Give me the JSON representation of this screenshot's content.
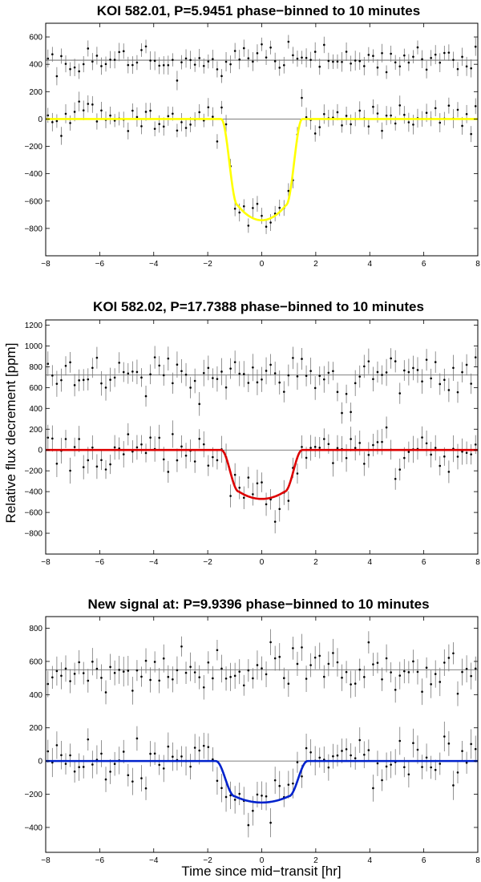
{
  "figure": {
    "ylabel": "Relative flux decrement [ppm]",
    "xlabel": "Time since mid−transit [hr]"
  },
  "chart_data": [
    {
      "type": "scatter",
      "title": "KOI 582.01, P=5.9451 phase−binned to 10 minutes",
      "xlim": [
        -8,
        8
      ],
      "ylim": [
        -1000,
        700
      ],
      "xticks": [
        -8,
        -6,
        -4,
        -2,
        0,
        2,
        4,
        6,
        8
      ],
      "yticks": [
        -800,
        -600,
        -400,
        -200,
        0,
        200,
        400,
        600
      ],
      "grid": false,
      "offset_baseline": 430,
      "depth": 740,
      "ingress_start": 1.5,
      "flat_half_width": 0.9,
      "model_color": "#ffff00",
      "noise_ppm": 55,
      "error_bar_ppm": 60
    },
    {
      "type": "scatter",
      "title": "KOI 582.02, P=17.7388 phase−binned to 10 minutes",
      "xlim": [
        -8,
        8
      ],
      "ylim": [
        -1000,
        1250
      ],
      "xticks": [
        -8,
        -6,
        -4,
        -2,
        0,
        2,
        4,
        6,
        8
      ],
      "yticks": [
        -800,
        -600,
        -400,
        -200,
        0,
        200,
        400,
        600,
        800,
        1000,
        1200
      ],
      "grid": false,
      "offset_baseline": 720,
      "depth": 470,
      "ingress_start": 1.5,
      "flat_half_width": 0.85,
      "model_color": "#dd0000",
      "noise_ppm": 110,
      "error_bar_ppm": 110
    },
    {
      "type": "scatter",
      "title": "New signal at: P=9.9396 phase−binned to 10 minutes",
      "xlim": [
        -8,
        8
      ],
      "ylim": [
        -550,
        870
      ],
      "xticks": [
        -8,
        -6,
        -4,
        -2,
        0,
        2,
        4,
        6,
        8
      ],
      "yticks": [
        -400,
        -200,
        0,
        200,
        400,
        600,
        800
      ],
      "grid": false,
      "offset_baseline": 550,
      "depth": 250,
      "ingress_start": 1.7,
      "flat_half_width": 1.0,
      "model_color": "#0022cc",
      "noise_ppm": 75,
      "error_bar_ppm": 75
    }
  ]
}
